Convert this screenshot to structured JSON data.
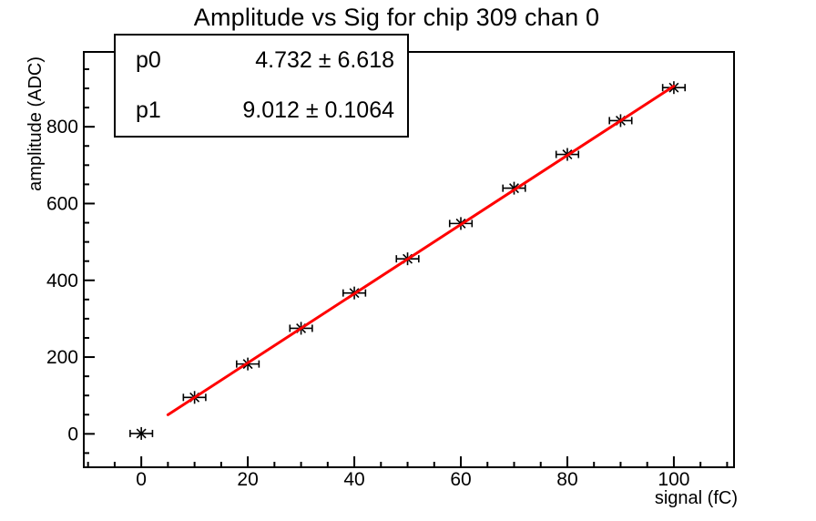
{
  "title": "Amplitude vs Sig for chip 309 chan 0",
  "stats_box": {
    "rows": [
      {
        "label": "p0",
        "value": "4.732 ± 6.618"
      },
      {
        "label": "p1",
        "value": "9.012 ± 0.1064"
      }
    ]
  },
  "colors": {
    "background": "#ffffff",
    "frame": "#000000",
    "marker": "#000000",
    "fit_line": "#ff0000",
    "text": "#000000"
  },
  "chart_data": {
    "type": "scatter",
    "title": "Amplitude vs Sig for chip 309 chan 0",
    "xlabel": "signal (fC)",
    "ylabel": "amplitude (ADC)",
    "x": [
      0,
      10,
      20,
      30,
      40,
      50,
      60,
      70,
      80,
      90,
      100
    ],
    "y": [
      1,
      95,
      182,
      275,
      367,
      456,
      548,
      640,
      728,
      816,
      902
    ],
    "xerr": 2.1,
    "xlim": [
      -10.8,
      111.3
    ],
    "ylim": [
      -87,
      995
    ],
    "xticks": [
      0,
      20,
      40,
      60,
      80,
      100
    ],
    "yticks": [
      0,
      200,
      400,
      600,
      800
    ],
    "x_minor_step": 5,
    "y_minor_step": 50,
    "grid": false,
    "legend_position": "none",
    "fit": {
      "name": "linear",
      "p0": 4.732,
      "p1": 9.012,
      "range": [
        5,
        100
      ],
      "color": "#ff0000",
      "width": 3
    }
  }
}
